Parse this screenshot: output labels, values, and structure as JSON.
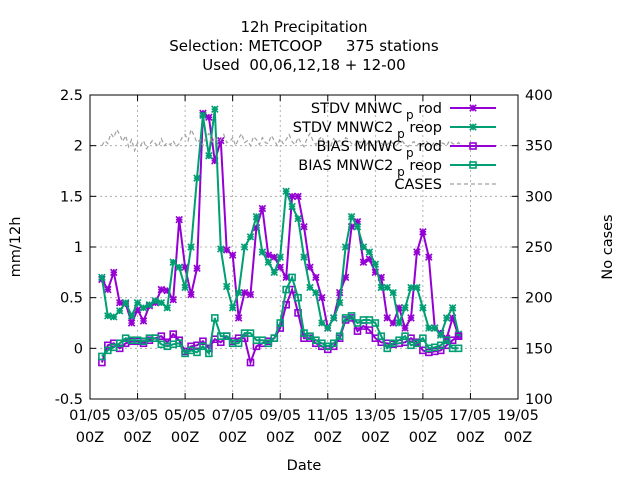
{
  "chart_data": {
    "type": "line",
    "title": [
      "12h Precipitation",
      "Selection: METCOOP     375 stations",
      "Used  00,06,12,18 + 12-00"
    ],
    "xlabel": "Date",
    "ylabel": "mm/12h",
    "y2label": "No cases",
    "ylim": [
      -0.5,
      2.5
    ],
    "y2lim": [
      100,
      400
    ],
    "yticks": [
      "-0.5",
      "0",
      "0.5",
      "1",
      "1.5",
      "2",
      "2.5"
    ],
    "y2ticks": [
      "100",
      "150",
      "200",
      "250",
      "300",
      "350",
      "400"
    ],
    "xlim": [
      1,
      19
    ],
    "xticks": [
      {
        "day": 1,
        "line1": "01/05",
        "line2": "00Z"
      },
      {
        "day": 3,
        "line1": "03/05",
        "line2": "00Z"
      },
      {
        "day": 5,
        "line1": "05/05",
        "line2": "00Z"
      },
      {
        "day": 7,
        "line1": "07/05",
        "line2": "00Z"
      },
      {
        "day": 9,
        "line1": "09/05",
        "line2": "00Z"
      },
      {
        "day": 11,
        "line1": "11/05",
        "line2": "00Z"
      },
      {
        "day": 13,
        "line1": "13/05",
        "line2": "00Z"
      },
      {
        "day": 15,
        "line1": "15/05",
        "line2": "00Z"
      },
      {
        "day": 17,
        "line1": "17/05",
        "line2": "00Z"
      },
      {
        "day": 19,
        "line1": "19/05",
        "line2": "00Z"
      }
    ],
    "x_start_day": 1.5,
    "x_step_days": 0.25,
    "grid": true,
    "legend_position": "top-right",
    "series": [
      {
        "name": "STDV MNWC_prod",
        "legend_main": "STDV MNWC",
        "legend_sub": "p",
        "legend_tail": "rod",
        "color": "#9400d3",
        "marker": "star",
        "axis": "y",
        "values": [
          0.68,
          0.58,
          0.75,
          0.45,
          0.44,
          0.25,
          0.38,
          0.27,
          0.42,
          0.45,
          0.58,
          0.57,
          0.48,
          1.27,
          0.8,
          0.53,
          0.79,
          2.32,
          2.28,
          1.85,
          2.05,
          0.97,
          0.92,
          0.3,
          0.55,
          0.53,
          1.19,
          1.38,
          0.92,
          0.9,
          0.8,
          0.7,
          1.5,
          1.5,
          1.2,
          0.8,
          0.7,
          0.5,
          0.2,
          0.3,
          0.55,
          0.7,
          1.2,
          1.25,
          0.85,
          0.88,
          0.75,
          0.7,
          0.3,
          0.25,
          0.4,
          0.2,
          0.3,
          0.95,
          1.15,
          0.9,
          0.2,
          0.15,
          0.1,
          0.3,
          0.12
        ]
      },
      {
        "name": "STDV MNWC2_preop",
        "legend_main": "STDV MNWC2",
        "legend_sub": "p",
        "legend_tail": "reop",
        "color": "#009e73",
        "marker": "star",
        "axis": "y",
        "values": [
          0.7,
          0.32,
          0.31,
          0.37,
          0.45,
          0.32,
          0.45,
          0.4,
          0.43,
          0.47,
          0.45,
          0.4,
          0.85,
          0.8,
          0.6,
          1.0,
          1.68,
          2.3,
          1.9,
          2.36,
          0.98,
          0.61,
          0.4,
          0.55,
          1.0,
          1.1,
          1.3,
          0.95,
          0.85,
          0.75,
          0.9,
          1.55,
          1.4,
          1.28,
          0.9,
          0.6,
          0.55,
          0.25,
          0.2,
          0.3,
          0.45,
          1.0,
          1.3,
          1.2,
          1.0,
          0.95,
          0.83,
          0.6,
          0.6,
          0.55,
          0.25,
          0.4,
          0.6,
          0.6,
          0.4,
          0.2,
          0.2,
          0.13,
          0.3,
          0.4,
          0.14
        ]
      },
      {
        "name": "BIAS MNWC_prod",
        "legend_main": "BIAS MNWC",
        "legend_sub": "p",
        "legend_tail": "rod",
        "color": "#9400d3",
        "marker": "box",
        "axis": "y",
        "values": [
          -0.14,
          0.03,
          0.05,
          0.0,
          0.05,
          0.07,
          0.07,
          0.05,
          0.08,
          0.1,
          0.12,
          0.06,
          0.14,
          0.08,
          -0.03,
          0.02,
          0.03,
          0.07,
          0.0,
          0.09,
          0.06,
          0.12,
          0.07,
          0.1,
          0.1,
          -0.14,
          0.02,
          0.05,
          0.07,
          0.1,
          0.2,
          0.43,
          0.58,
          0.35,
          0.1,
          0.1,
          0.05,
          0.02,
          -0.01,
          0.02,
          0.1,
          0.28,
          0.3,
          0.17,
          0.22,
          0.18,
          0.1,
          0.06,
          0.05,
          0.04,
          0.05,
          0.06,
          0.1,
          0.06,
          -0.02,
          -0.04,
          -0.03,
          -0.02,
          0.03,
          0.08,
          0.12
        ]
      },
      {
        "name": "BIAS MNWC2_preop",
        "legend_main": "BIAS MNWC2",
        "legend_sub": "p",
        "legend_tail": "reop",
        "color": "#009e73",
        "marker": "box",
        "axis": "y",
        "values": [
          -0.08,
          -0.02,
          0.01,
          0.05,
          0.1,
          0.08,
          0.08,
          0.07,
          0.1,
          0.1,
          0.04,
          0.02,
          0.04,
          0.05,
          -0.05,
          -0.02,
          -0.04,
          0.02,
          -0.05,
          0.3,
          0.12,
          0.12,
          0.05,
          0.05,
          0.15,
          0.15,
          0.08,
          0.08,
          0.05,
          0.1,
          0.25,
          0.58,
          0.7,
          0.5,
          0.15,
          0.12,
          0.08,
          0.05,
          0.02,
          0.05,
          0.12,
          0.3,
          0.32,
          0.25,
          0.28,
          0.28,
          0.25,
          0.12,
          0.0,
          0.05,
          0.08,
          0.12,
          0.03,
          0.05,
          0.1,
          0.0,
          0.01,
          0.03,
          0.08,
          0.0,
          0.0
        ]
      },
      {
        "name": "CASES",
        "legend_main": "CASES",
        "legend_sub": "",
        "legend_tail": "",
        "color": "#a0a0a0",
        "marker": "none",
        "dashed": true,
        "axis": "y2",
        "x_step_days": 0.125,
        "values": [
          350,
          355,
          352,
          362,
          358,
          366,
          361,
          354,
          360,
          349,
          356,
          345,
          353,
          350,
          355,
          347,
          351,
          355,
          352,
          349,
          357,
          350,
          353,
          351,
          355,
          349,
          352,
          358,
          361,
          355,
          366,
          360,
          353,
          356,
          350,
          358,
          362,
          352,
          359,
          350,
          356,
          361,
          353,
          354,
          358,
          350,
          357,
          362,
          353,
          355,
          350,
          359,
          356,
          351,
          358,
          353,
          352,
          360,
          355,
          350,
          357,
          352,
          356,
          361,
          354,
          351,
          358,
          353,
          349,
          357,
          362,
          355,
          351,
          356,
          359,
          352,
          354,
          350,
          357,
          353,
          355,
          351,
          358,
          356,
          352,
          350,
          355,
          353,
          357,
          351,
          354,
          350,
          352,
          355,
          353,
          349,
          351,
          354,
          352,
          350,
          353,
          355,
          351,
          349,
          352,
          354,
          350,
          353,
          351,
          355,
          352,
          350,
          354,
          351,
          353,
          352,
          350,
          355,
          352,
          351,
          353,
          350
        ]
      }
    ]
  }
}
